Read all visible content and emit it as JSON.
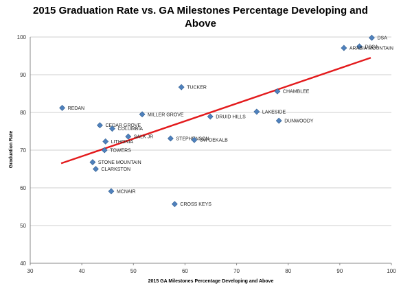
{
  "chart_data": {
    "type": "scatter",
    "title": "2015 Graduation Rate vs. GA Milestones Percentage Developing and Above",
    "xlabel": "2015 GA Milestones Percentage Developing and Above",
    "ylabel": "Graduation Rate",
    "xlim": [
      30,
      100
    ],
    "ylim": [
      40,
      100
    ],
    "xticks": [
      30,
      40,
      50,
      60,
      70,
      80,
      90,
      100
    ],
    "yticks": [
      40,
      50,
      60,
      70,
      80,
      90,
      100
    ],
    "grid": "horizontal",
    "marker_color": "#4F81BD",
    "trendline_color": "#E31A1C",
    "trendline": {
      "x": [
        36,
        96
      ],
      "y": [
        66.5,
        94.5
      ]
    },
    "points": [
      {
        "label": "DSA",
        "x": 96.2,
        "y": 99.8
      },
      {
        "label": "DSCA",
        "x": 93.8,
        "y": 97.5
      },
      {
        "label": "ARABIA MOUNTAIN",
        "x": 90.8,
        "y": 97.1
      },
      {
        "label": "TUCKER",
        "x": 59.3,
        "y": 86.7
      },
      {
        "label": "CHAMBLEE",
        "x": 77.9,
        "y": 85.6
      },
      {
        "label": "REDAN",
        "x": 36.2,
        "y": 81.2
      },
      {
        "label": "LAKESIDE",
        "x": 73.9,
        "y": 80.2
      },
      {
        "label": "MILLER GROVE",
        "x": 51.7,
        "y": 79.5
      },
      {
        "label": "DRUID HILLS",
        "x": 64.9,
        "y": 78.9
      },
      {
        "label": "DUNWOODY",
        "x": 78.2,
        "y": 77.8
      },
      {
        "label": "CEDAR GROVE",
        "x": 43.5,
        "y": 76.6
      },
      {
        "label": "COLUMBIA",
        "x": 45.9,
        "y": 75.7
      },
      {
        "label": "SALK JR",
        "x": 49.0,
        "y": 73.6
      },
      {
        "label": "STEPHENSON",
        "x": 57.2,
        "y": 73.1
      },
      {
        "label": "SW DEKALB",
        "x": 61.8,
        "y": 72.7
      },
      {
        "label": "LITHONIA",
        "x": 44.6,
        "y": 72.3
      },
      {
        "label": "TOWERS",
        "x": 44.4,
        "y": 70.0
      },
      {
        "label": "STONE MOUNTAIN",
        "x": 42.1,
        "y": 66.8
      },
      {
        "label": "CLARKSTON",
        "x": 42.7,
        "y": 65.0
      },
      {
        "label": "MCNAIR",
        "x": 45.7,
        "y": 59.1
      },
      {
        "label": "CROSS KEYS",
        "x": 58.0,
        "y": 55.7
      }
    ]
  }
}
